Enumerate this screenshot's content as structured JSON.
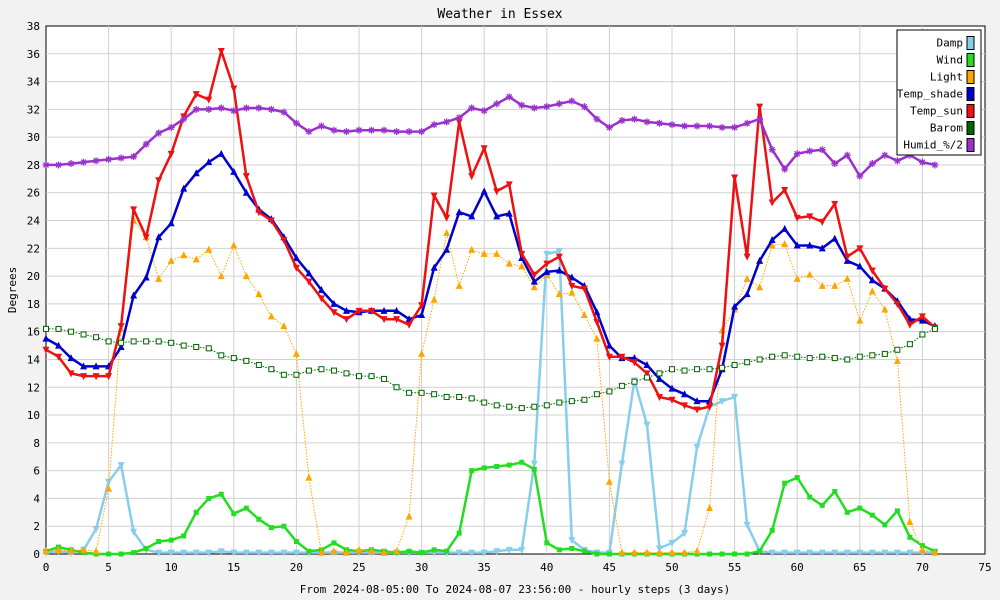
{
  "chart_data": {
    "type": "line",
    "title": "Weather in Essex",
    "xlabel": "From 2024-08-05:00 To 2024-08-07 23:56:00 - hourly steps (3 days)",
    "ylabel": "Degrees",
    "xlim": [
      0,
      75
    ],
    "ylim": [
      0,
      38
    ],
    "xticks": [
      0,
      5,
      10,
      15,
      20,
      25,
      30,
      35,
      40,
      45,
      50,
      55,
      60,
      65,
      70,
      75
    ],
    "yticks": [
      0,
      2,
      4,
      6,
      8,
      10,
      12,
      14,
      16,
      18,
      20,
      22,
      24,
      26,
      28,
      30,
      32,
      34,
      36,
      38
    ],
    "grid": true,
    "legend_position": "top-right",
    "series": [
      {
        "name": "Damp",
        "color": "#87ceeb",
        "marker": "triangle-down",
        "dotted": false,
        "values": [
          0.1,
          0.2,
          0.1,
          0.3,
          1.8,
          5.2,
          6.4,
          1.6,
          0.3,
          0.1,
          0.1,
          0.1,
          0.1,
          0.1,
          0.2,
          0.1,
          0.1,
          0.1,
          0.1,
          0.1,
          0.1,
          0.1,
          0.1,
          0.1,
          0.1,
          0.1,
          0.1,
          0.1,
          0.1,
          0.1,
          0.1,
          0.1,
          0.1,
          0.1,
          0.1,
          0.1,
          0.2,
          0.3,
          0.3,
          6.5,
          21.6,
          21.8,
          1.0,
          0.3,
          0.1,
          0.1,
          6.5,
          12.5,
          9.3,
          0.4,
          0.8,
          1.5,
          7.7,
          10.6,
          11.0,
          11.3,
          2.1,
          0.2,
          0.1,
          0.1,
          0.1,
          0.1,
          0.1,
          0.1,
          0.1,
          0.1,
          0.1,
          0.1,
          0.1,
          0.1,
          0.1,
          0.1
        ]
      },
      {
        "name": "Wind",
        "color": "#22dd22",
        "marker": "square",
        "dotted": false,
        "values": [
          0.2,
          0.5,
          0.3,
          0.1,
          0.0,
          0.0,
          0.0,
          0.1,
          0.4,
          0.9,
          1.0,
          1.3,
          3.0,
          4.0,
          4.3,
          2.9,
          3.3,
          2.5,
          1.9,
          2.0,
          0.9,
          0.2,
          0.3,
          0.8,
          0.3,
          0.2,
          0.3,
          0.2,
          0.1,
          0.2,
          0.1,
          0.3,
          0.2,
          1.5,
          6.0,
          6.2,
          6.3,
          6.4,
          6.6,
          6.1,
          0.8,
          0.3,
          0.4,
          0.2,
          0.0,
          0.0,
          0.0,
          0.0,
          0.0,
          0.0,
          0.0,
          0.0,
          0.0,
          0.0,
          0.0,
          0.0,
          0.0,
          0.2,
          1.7,
          5.1,
          5.5,
          4.1,
          3.5,
          4.5,
          3.0,
          3.3,
          2.8,
          2.1,
          3.1,
          1.2,
          0.6,
          0.2
        ]
      },
      {
        "name": "Light",
        "color": "#ffa500",
        "marker": "triangle",
        "dotted": true,
        "values": [
          0.2,
          0.3,
          0.2,
          0.3,
          0.2,
          4.7,
          16.2,
          24.0,
          22.8,
          19.8,
          21.1,
          21.5,
          21.2,
          21.9,
          20.0,
          22.2,
          20.0,
          18.7,
          17.1,
          16.4,
          14.4,
          5.5,
          0.1,
          0.2,
          0.1,
          0.3,
          0.2,
          0.1,
          0.2,
          2.7,
          14.4,
          18.3,
          23.1,
          19.3,
          21.9,
          21.6,
          21.6,
          20.9,
          20.7,
          19.2,
          20.1,
          18.7,
          18.8,
          17.2,
          15.5,
          5.2,
          0.1,
          0.1,
          0.1,
          0.1,
          0.1,
          0.1,
          0.2,
          3.3,
          16.1,
          17.6,
          19.8,
          19.2,
          22.2,
          22.3,
          19.8,
          20.1,
          19.3,
          19.3,
          19.8,
          16.8,
          18.9,
          17.6,
          13.9,
          2.3,
          0.3,
          0.1
        ]
      },
      {
        "name": "Temp_shade",
        "color": "#0000cc",
        "marker": "triangle",
        "dotted": false,
        "values": [
          15.5,
          15.0,
          14.1,
          13.5,
          13.5,
          13.5,
          14.9,
          18.6,
          19.9,
          22.8,
          23.8,
          26.3,
          27.4,
          28.2,
          28.8,
          27.5,
          26.0,
          24.8,
          24.1,
          22.8,
          21.3,
          20.2,
          19.0,
          18.0,
          17.5,
          17.4,
          17.5,
          17.5,
          17.5,
          16.9,
          17.2,
          20.6,
          21.9,
          24.6,
          24.3,
          26.1,
          24.3,
          24.5,
          21.3,
          19.6,
          20.3,
          20.4,
          19.9,
          19.3,
          17.4,
          15.0,
          14.1,
          14.1,
          13.6,
          12.6,
          11.9,
          11.5,
          11.0,
          11.0,
          13.3,
          17.8,
          18.7,
          21.1,
          22.6,
          23.4,
          22.2,
          22.2,
          22.0,
          22.7,
          21.1,
          20.7,
          19.7,
          19.1,
          18.2,
          16.9,
          16.8,
          16.4
        ]
      },
      {
        "name": "Temp_sun",
        "color": "#ee1111",
        "marker": "triangle-down",
        "dotted": false,
        "values": [
          14.7,
          14.2,
          13.0,
          12.8,
          12.8,
          12.8,
          16.4,
          24.8,
          22.8,
          26.9,
          28.8,
          31.5,
          33.1,
          32.7,
          36.2,
          33.5,
          27.2,
          24.6,
          24.0,
          22.6,
          20.6,
          19.6,
          18.4,
          17.4,
          16.9,
          17.5,
          17.5,
          16.9,
          16.9,
          16.5,
          17.9,
          25.8,
          24.2,
          31.1,
          27.2,
          29.2,
          26.1,
          26.6,
          21.6,
          20.1,
          20.9,
          21.4,
          19.3,
          19.1,
          16.7,
          14.2,
          14.2,
          13.8,
          13.0,
          11.3,
          11.1,
          10.7,
          10.4,
          10.6,
          15.0,
          27.1,
          21.4,
          32.2,
          25.3,
          26.2,
          24.2,
          24.3,
          23.9,
          25.2,
          21.4,
          22.0,
          20.4,
          19.1,
          18.0,
          16.5,
          17.1,
          16.3
        ]
      },
      {
        "name": "Barom",
        "color": "#006400",
        "marker": "square-open",
        "dotted": true,
        "values": [
          16.2,
          16.2,
          16.0,
          15.8,
          15.6,
          15.3,
          15.2,
          15.3,
          15.3,
          15.3,
          15.2,
          15.0,
          14.9,
          14.8,
          14.3,
          14.1,
          13.9,
          13.6,
          13.3,
          12.9,
          12.9,
          13.2,
          13.3,
          13.2,
          13.0,
          12.8,
          12.8,
          12.6,
          12.0,
          11.6,
          11.6,
          11.5,
          11.3,
          11.3,
          11.2,
          10.9,
          10.7,
          10.6,
          10.5,
          10.6,
          10.7,
          10.9,
          11.0,
          11.1,
          11.5,
          11.7,
          12.1,
          12.4,
          12.7,
          13.0,
          13.3,
          13.2,
          13.3,
          13.3,
          13.4,
          13.6,
          13.8,
          14.0,
          14.2,
          14.3,
          14.2,
          14.1,
          14.2,
          14.1,
          14.0,
          14.2,
          14.3,
          14.4,
          14.7,
          15.1,
          15.8,
          16.2
        ]
      },
      {
        "name": "Humid_%/2",
        "color": "#9932cc",
        "marker": "star",
        "dotted": false,
        "values": [
          28.0,
          28.0,
          28.1,
          28.2,
          28.3,
          28.4,
          28.5,
          28.6,
          29.5,
          30.3,
          30.7,
          31.3,
          32.0,
          32.0,
          32.1,
          31.9,
          32.1,
          32.1,
          32.0,
          31.8,
          31.0,
          30.4,
          30.8,
          30.5,
          30.4,
          30.5,
          30.5,
          30.5,
          30.4,
          30.4,
          30.4,
          30.9,
          31.1,
          31.4,
          32.1,
          31.9,
          32.4,
          32.9,
          32.3,
          32.1,
          32.2,
          32.4,
          32.6,
          32.2,
          31.3,
          30.7,
          31.2,
          31.3,
          31.1,
          31.0,
          30.9,
          30.8,
          30.8,
          30.8,
          30.7,
          30.7,
          31.0,
          31.3,
          29.1,
          27.7,
          28.8,
          29.0,
          29.1,
          28.1,
          28.7,
          27.2,
          28.1,
          28.7,
          28.3,
          28.7,
          28.2,
          28.0
        ]
      }
    ]
  }
}
